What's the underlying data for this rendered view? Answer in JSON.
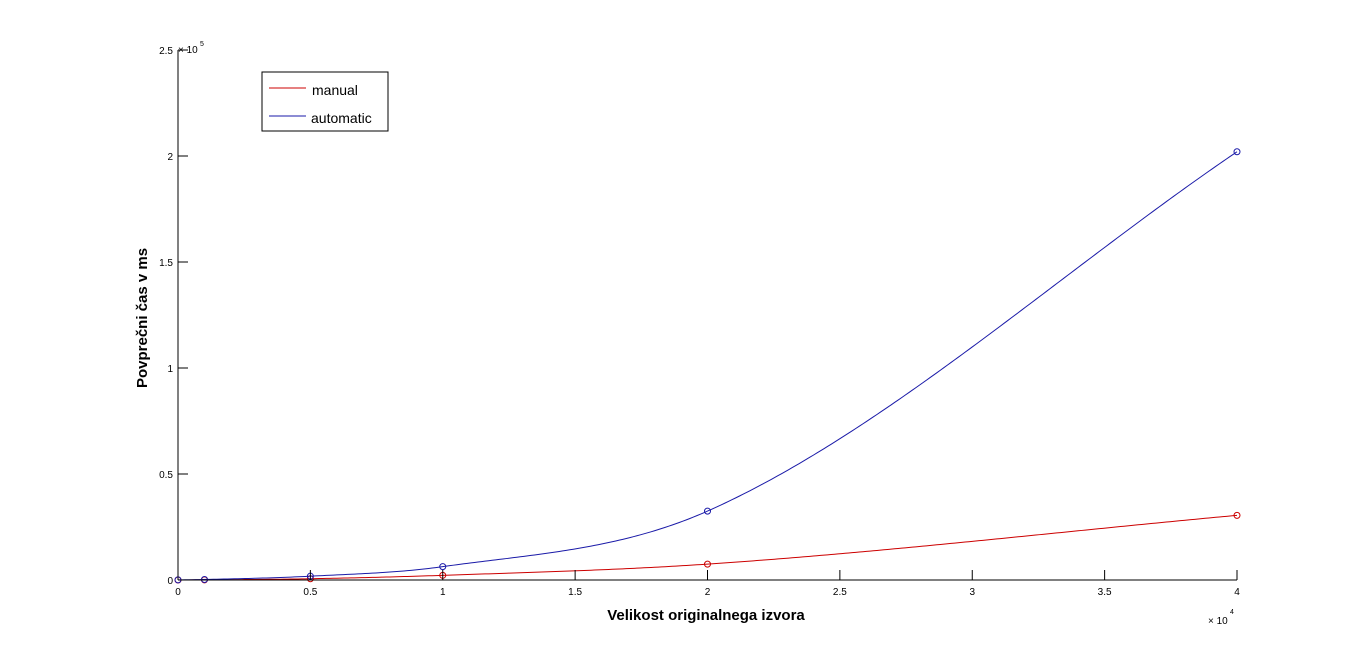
{
  "chart_data": {
    "type": "line",
    "title": "",
    "xlabel": "Velikost originalnega izvora",
    "ylabel": "Povprečni čas v ms",
    "x_exponent": {
      "base": "× 10",
      "power": "4"
    },
    "y_exponent": {
      "base": "× 10",
      "power": "5"
    },
    "xlim": [
      0,
      40000
    ],
    "ylim": [
      0,
      250000
    ],
    "x_tick_values": [
      0,
      5000,
      10000,
      15000,
      20000,
      25000,
      30000,
      35000,
      40000
    ],
    "x_tick_labels": [
      "0",
      "0.5",
      "1",
      "1.5",
      "2",
      "2.5",
      "3",
      "3.5",
      "4"
    ],
    "y_tick_values": [
      0,
      50000,
      100000,
      150000,
      200000,
      250000
    ],
    "y_tick_labels": [
      "0",
      "0.5",
      "1",
      "1.5",
      "2",
      "2.5"
    ],
    "grid": false,
    "legend_position": "top-left",
    "series": [
      {
        "name": "manual",
        "color": "#cc0000",
        "x": [
          0,
          1000,
          5000,
          10000,
          20000,
          40000
        ],
        "values": [
          10,
          60,
          600,
          2200,
          7500,
          30500
        ]
      },
      {
        "name": "automatic",
        "color": "#1a1aa8",
        "x": [
          0,
          1000,
          5000,
          10000,
          20000,
          40000
        ],
        "values": [
          60,
          250,
          1800,
          6300,
          32500,
          202000
        ]
      }
    ]
  }
}
